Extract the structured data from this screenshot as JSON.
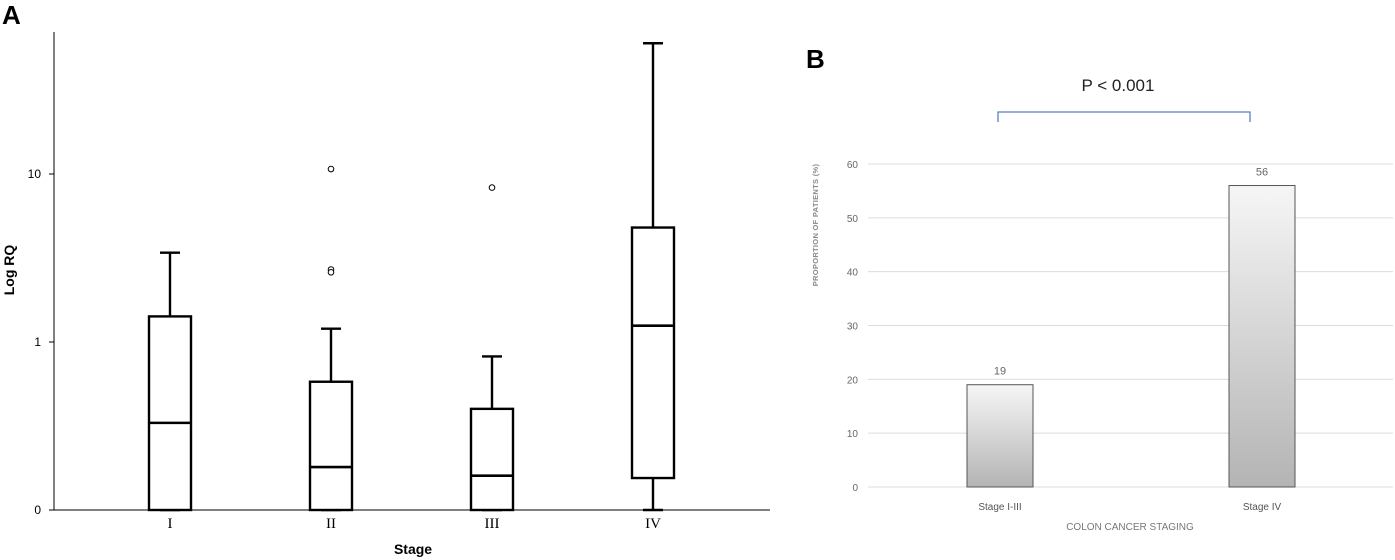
{
  "panel_a_letter": "A",
  "panel_b_letter": "B",
  "chart_data": [
    {
      "type": "boxplot",
      "panel": "A",
      "xlabel": "Stage",
      "ylabel": "Log RQ",
      "yscale": "log",
      "yticks": [
        {
          "value": 0.1,
          "label": "0"
        },
        {
          "value": 1,
          "label": "1"
        },
        {
          "value": 10,
          "label": "10"
        }
      ],
      "ylim": [
        0.1,
        70
      ],
      "categories": [
        "I",
        "II",
        "III",
        "IV"
      ],
      "boxes": [
        {
          "category": "I",
          "whisker_low": 0.1,
          "q1": 0.1,
          "median": 0.33,
          "q3": 1.42,
          "whisker_high": 3.4,
          "outliers": []
        },
        {
          "category": "II",
          "whisker_low": 0.1,
          "q1": 0.1,
          "median": 0.18,
          "q3": 0.58,
          "whisker_high": 1.2,
          "outliers": [
            10.7,
            2.7,
            2.6
          ]
        },
        {
          "category": "III",
          "whisker_low": 0.1,
          "q1": 0.1,
          "median": 0.16,
          "q3": 0.4,
          "whisker_high": 0.82,
          "outliers": [
            8.3
          ]
        },
        {
          "category": "IV",
          "whisker_low": 0.1,
          "q1": 0.155,
          "median": 1.25,
          "q3": 4.8,
          "whisker_high": 60,
          "outliers": []
        }
      ],
      "grid": false,
      "legend": "none"
    },
    {
      "type": "bar",
      "panel": "B",
      "categories": [
        "Stage I-III",
        "Stage IV"
      ],
      "values": [
        19,
        56
      ],
      "xlabel": "COLON CANCER STAGING",
      "ylabel": "PROPORTION OF PATIENTS (%)",
      "ylim": [
        0,
        60
      ],
      "yticks": [
        0,
        10,
        20,
        30,
        40,
        50,
        60
      ],
      "data_labels": [
        "19",
        "56"
      ],
      "annotation": "P < 0.001",
      "grid": true,
      "legend": "none"
    }
  ]
}
